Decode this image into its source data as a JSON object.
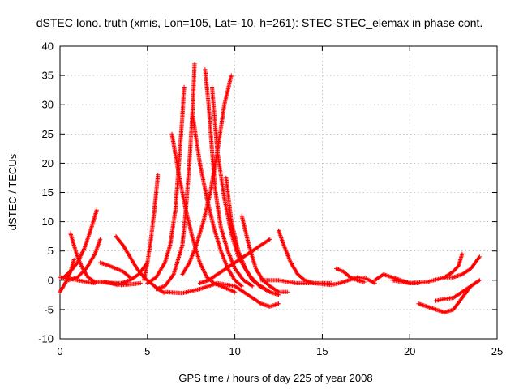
{
  "chart_data": {
    "type": "scatter",
    "title": "dSTEC Iono. truth (xmis, Lon=105, Lat=-10, h=261): STEC-STEC_elemax in phase cont.",
    "xlabel": "GPS time / hours of day 225 of year 2008",
    "ylabel": "dSTEC  / TECUs",
    "xlim": [
      0,
      25
    ],
    "ylim": [
      -10,
      40
    ],
    "xticks": [
      0,
      5,
      10,
      15,
      20,
      25
    ],
    "yticks": [
      -10,
      -5,
      0,
      5,
      10,
      15,
      20,
      25,
      30,
      35,
      40
    ],
    "grid": true,
    "marker": "plus",
    "color": "#ff0000",
    "series": [
      {
        "x": [
          0.0,
          0.2,
          0.4,
          0.6,
          0.8
        ],
        "y": [
          -2,
          -1,
          0,
          1.5,
          3.5
        ]
      },
      {
        "x": [
          0.0,
          0.5,
          1.0,
          1.5,
          2.0
        ],
        "y": [
          0.5,
          0.3,
          0,
          -0.3,
          -0.5
        ]
      },
      {
        "x": [
          0.6,
          0.8,
          1.0,
          1.3,
          1.6,
          2.0,
          2.4,
          2.9,
          3.3
        ],
        "y": [
          8,
          6,
          4,
          2,
          0.5,
          -0.3,
          -0.3,
          -0.5,
          -0.8
        ]
      },
      {
        "x": [
          0.2,
          0.6,
          1.0,
          1.4,
          1.8,
          2.1
        ],
        "y": [
          0.5,
          1.5,
          3,
          5.5,
          9,
          12
        ]
      },
      {
        "x": [
          0.5,
          1.0,
          1.5,
          2.0,
          2.3
        ],
        "y": [
          0,
          0.5,
          2,
          4.5,
          7
        ]
      },
      {
        "x": [
          2.3,
          2.8,
          3.2,
          3.6,
          4.0
        ],
        "y": [
          3,
          2.5,
          2,
          1.5,
          0.5
        ]
      },
      {
        "x": [
          3.2,
          3.6,
          4.0,
          4.4,
          4.8,
          5.2,
          5.6,
          6.0
        ],
        "y": [
          7.5,
          6,
          4,
          2,
          0.5,
          -0.5,
          -1.5,
          -2.2
        ]
      },
      {
        "x": [
          3.0,
          3.5,
          4.0,
          4.5,
          5.0
        ],
        "y": [
          -0.5,
          -0.5,
          0,
          1,
          3
        ]
      },
      {
        "x": [
          2.4,
          3.0,
          3.5,
          4.0,
          4.6
        ],
        "y": [
          -0.3,
          -0.5,
          -0.8,
          -0.7,
          -0.5
        ]
      },
      {
        "x": [
          4.8,
          5.0,
          5.2,
          5.4,
          5.6
        ],
        "y": [
          0,
          3,
          7,
          12,
          18
        ]
      },
      {
        "x": [
          5.0,
          5.5,
          6.0,
          6.3,
          6.6,
          6.8,
          7.0,
          7.1
        ],
        "y": [
          -0.5,
          0.5,
          3,
          6,
          12,
          20,
          28,
          33
        ]
      },
      {
        "x": [
          5.5,
          6.0,
          6.5,
          7.0,
          7.2,
          7.4,
          7.6,
          7.7
        ],
        "y": [
          -1.5,
          -1,
          1,
          6,
          12,
          20,
          30,
          37
        ]
      },
      {
        "x": [
          6.4,
          6.8,
          7.2,
          7.6,
          8.0,
          8.4,
          8.8,
          9.2,
          9.6,
          10.0
        ],
        "y": [
          25,
          18,
          12,
          7,
          3,
          0.5,
          -0.5,
          -1,
          -1.5,
          -2
        ]
      },
      {
        "x": [
          7.0,
          7.4,
          7.8,
          8.2,
          8.6,
          9.0,
          9.4,
          9.8
        ],
        "y": [
          1,
          3,
          6,
          10,
          15,
          22,
          30,
          35
        ]
      },
      {
        "x": [
          7.6,
          8.0,
          8.4,
          8.8,
          9.2,
          9.6,
          10.0,
          10.4
        ],
        "y": [
          28,
          20,
          14,
          9,
          5,
          2,
          0,
          -1
        ]
      },
      {
        "x": [
          8.3,
          8.5,
          8.7,
          8.9,
          9.2,
          9.6,
          10.0,
          10.5,
          11.0
        ],
        "y": [
          36,
          30,
          22,
          15,
          9,
          5,
          2,
          0,
          -1
        ]
      },
      {
        "x": [
          8.7,
          9.0,
          9.4,
          9.8,
          10.2,
          10.8,
          11.4,
          12.0
        ],
        "y": [
          33,
          22,
          14,
          8,
          4,
          1,
          -1,
          -2
        ]
      },
      {
        "x": [
          9.5,
          9.8,
          10.2,
          10.6,
          11.0,
          11.5,
          12.0,
          12.5
        ],
        "y": [
          17.5,
          10,
          5,
          2,
          0,
          -1,
          -2,
          -2.5
        ]
      },
      {
        "x": [
          10.4,
          10.8,
          11.2,
          11.6,
          12.0,
          12.5,
          13.0
        ],
        "y": [
          11,
          6,
          2,
          0,
          -1,
          -2,
          -2
        ]
      },
      {
        "x": [
          6.0,
          7.0,
          8.0,
          9.0,
          10.0,
          10.5,
          11.0,
          11.5,
          12.0,
          12.5
        ],
        "y": [
          -2,
          -2.2,
          -1.5,
          -0.5,
          -1,
          -2,
          -3,
          -4,
          -4.5,
          -4
        ]
      },
      {
        "x": [
          8.0,
          8.5,
          9.0,
          9.5,
          10.0,
          10.5,
          11.0,
          11.5,
          12.0
        ],
        "y": [
          -0.5,
          0,
          1,
          2,
          3,
          4,
          5,
          6,
          7
        ]
      },
      {
        "x": [
          12.5,
          12.8,
          13.2,
          13.6,
          14.0,
          14.5,
          15.0,
          15.5
        ],
        "y": [
          8.5,
          6,
          3,
          1,
          0,
          -0.5,
          -0.5,
          -0.5
        ]
      },
      {
        "x": [
          11.5,
          12.5,
          13.5,
          14.5,
          15.5,
          16.0,
          16.5,
          17.0,
          17.5,
          18.0
        ],
        "y": [
          0,
          0,
          -0.5,
          -0.5,
          -0.8,
          -0.5,
          0,
          0.5,
          0.3,
          -0.5
        ]
      },
      {
        "x": [
          15.8,
          16.2,
          16.6,
          17.0,
          17.4
        ],
        "y": [
          2,
          1.5,
          0.5,
          0,
          -0.3
        ]
      },
      {
        "x": [
          18.0,
          18.5,
          19.0,
          19.5,
          20.0,
          20.5
        ],
        "y": [
          0,
          1,
          0.5,
          0,
          -0.5,
          -0.5
        ]
      },
      {
        "x": [
          19.0,
          20.0,
          21.0,
          22.0,
          22.5,
          22.8,
          23.0
        ],
        "y": [
          0,
          -0.5,
          -0.3,
          0.5,
          1.5,
          2.5,
          4.5
        ]
      },
      {
        "x": [
          20.5,
          21.0,
          21.5,
          22.0,
          22.5,
          23.0,
          23.5
        ],
        "y": [
          -4,
          -4.5,
          -5,
          -5.5,
          -5,
          -3,
          -1
        ]
      },
      {
        "x": [
          21.5,
          22.0,
          22.5,
          23.0,
          23.5,
          24.0
        ],
        "y": [
          -3.5,
          -3.2,
          -3,
          -2,
          -1,
          0
        ]
      },
      {
        "x": [
          22.0,
          22.5,
          23.0,
          23.5,
          24.0
        ],
        "y": [
          0.5,
          0.5,
          1,
          2,
          4
        ]
      }
    ]
  }
}
